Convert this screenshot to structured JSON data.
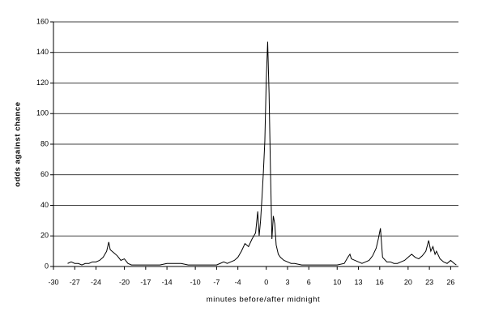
{
  "chart_data": {
    "type": "line",
    "xlabel": "minutes before/after midnight",
    "ylabel": "odds against chance",
    "xlim": [
      -30,
      27.1
    ],
    "ylim": [
      0,
      160
    ],
    "xticks": [
      -30,
      -27,
      -24,
      -20,
      -17,
      -14,
      -10,
      -7,
      -4,
      0,
      3,
      6,
      10,
      13,
      16,
      20,
      23,
      26
    ],
    "yticks": [
      0,
      20,
      40,
      60,
      80,
      100,
      120,
      140,
      160
    ],
    "grid": true,
    "series": [
      {
        "color": "#000000",
        "x": [
          -28,
          -27.5,
          -27,
          -26.5,
          -26,
          -25.5,
          -25,
          -24.5,
          -24,
          -23.5,
          -23,
          -22.5,
          -22.2,
          -22,
          -21.5,
          -21,
          -20.5,
          -20,
          -19.5,
          -19,
          -18,
          -17,
          -16,
          -15,
          -14,
          -13,
          -12,
          -11,
          -10,
          -9,
          -8,
          -7,
          -6.5,
          -6,
          -5.5,
          -5,
          -4.5,
          -4,
          -3.5,
          -3,
          -2.5,
          -2,
          -1.5,
          -1.2,
          -1,
          -0.8,
          -0.6,
          -0.4,
          -0.2,
          0,
          0.2,
          0.4,
          0.6,
          0.8,
          1,
          1.2,
          1.4,
          1.7,
          2,
          2.5,
          3,
          3.5,
          4,
          5,
          6,
          7,
          8,
          9,
          10,
          11,
          11.5,
          11.8,
          12,
          12.5,
          13,
          13.5,
          14,
          14.5,
          15,
          15.5,
          15.8,
          16.1,
          16.4,
          17,
          17.5,
          18,
          18.5,
          19,
          19.5,
          20,
          20.5,
          21,
          21.5,
          22,
          22.5,
          22.9,
          23.2,
          23.5,
          23.8,
          24,
          24.5,
          25,
          25.5,
          26,
          26.5,
          26.8
        ],
        "values": [
          2,
          3,
          2,
          2,
          1,
          2,
          2,
          3,
          3,
          4,
          6,
          10,
          16,
          11,
          9,
          7,
          4,
          5,
          2,
          1,
          1,
          1,
          1,
          1,
          2,
          2,
          2,
          1,
          1,
          1,
          1,
          1,
          2,
          3,
          2,
          3,
          4,
          6,
          10,
          15,
          13,
          18,
          22,
          36,
          20,
          30,
          45,
          62,
          82,
          122,
          147,
          113,
          62,
          18,
          33,
          28,
          14,
          8,
          6,
          4,
          3,
          2,
          2,
          1,
          1,
          1,
          1,
          1,
          1,
          2,
          6,
          8,
          5,
          4,
          3,
          2,
          3,
          4,
          7,
          12,
          18,
          25,
          6,
          3,
          3,
          2,
          2,
          3,
          4,
          6,
          8,
          6,
          5,
          7,
          10,
          17,
          10,
          13,
          8,
          10,
          5,
          3,
          2,
          4,
          2,
          1
        ]
      }
    ]
  }
}
